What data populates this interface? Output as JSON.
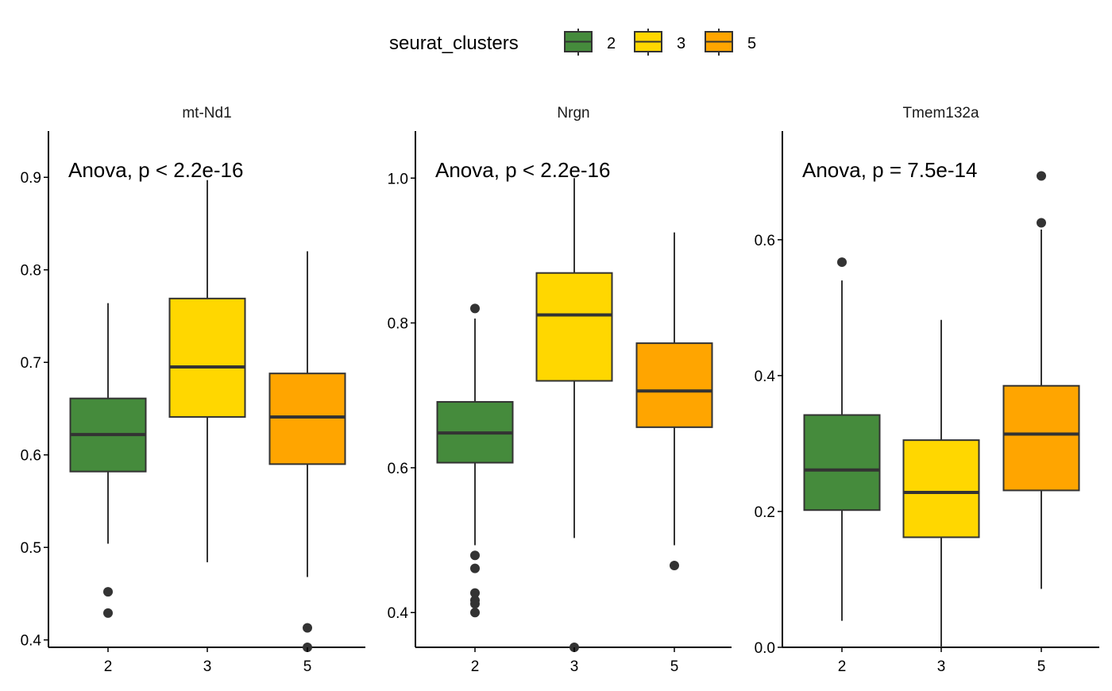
{
  "legend": {
    "title": "seurat_clusters",
    "items": [
      {
        "label": "2",
        "color": "#458B3C"
      },
      {
        "label": "3",
        "color": "#FFD700"
      },
      {
        "label": "5",
        "color": "#FFA500"
      }
    ]
  },
  "colors": {
    "outline": "#333333",
    "axis": "#000000",
    "background": "#ffffff"
  },
  "chart_data": [
    {
      "type": "box",
      "title": "mt-Nd1",
      "annotation": "Anova, p < 2.2e-16",
      "categories": [
        "2",
        "3",
        "5"
      ],
      "ylim": [
        0.392,
        0.95
      ],
      "yticks": [
        0.4,
        0.5,
        0.6,
        0.7,
        0.8,
        0.9
      ],
      "ytick_labels": [
        "0.4",
        "0.5",
        "0.6",
        "0.7",
        "0.8",
        "0.9"
      ],
      "boxes": [
        {
          "group": "2",
          "whisker_low": 0.504,
          "q1": 0.582,
          "median": 0.622,
          "q3": 0.661,
          "whisker_high": 0.764,
          "outliers": [
            0.452,
            0.429
          ]
        },
        {
          "group": "3",
          "whisker_low": 0.484,
          "q1": 0.641,
          "median": 0.695,
          "q3": 0.769,
          "whisker_high": 0.897,
          "outliers": []
        },
        {
          "group": "5",
          "whisker_low": 0.468,
          "q1": 0.59,
          "median": 0.641,
          "q3": 0.688,
          "whisker_high": 0.82,
          "outliers": [
            0.413,
            0.392
          ]
        }
      ]
    },
    {
      "type": "box",
      "title": "Nrgn",
      "annotation": "Anova, p < 2.2e-16",
      "categories": [
        "2",
        "3",
        "5"
      ],
      "ylim": [
        0.352,
        1.065
      ],
      "yticks": [
        0.4,
        0.6,
        0.8,
        1.0
      ],
      "ytick_labels": [
        "0.4",
        "0.6",
        "0.8",
        "1.0"
      ],
      "boxes": [
        {
          "group": "2",
          "whisker_low": 0.493,
          "q1": 0.607,
          "median": 0.648,
          "q3": 0.691,
          "whisker_high": 0.806,
          "outliers": [
            0.82,
            0.479,
            0.461,
            0.427,
            0.417,
            0.412,
            0.4
          ]
        },
        {
          "group": "3",
          "whisker_low": 0.503,
          "q1": 0.72,
          "median": 0.811,
          "q3": 0.869,
          "whisker_high": 1.0,
          "outliers": [
            0.352
          ]
        },
        {
          "group": "5",
          "whisker_low": 0.493,
          "q1": 0.656,
          "median": 0.706,
          "q3": 0.772,
          "whisker_high": 0.925,
          "outliers": [
            0.465
          ]
        }
      ]
    },
    {
      "type": "box",
      "title": "Tmem132a",
      "annotation": "Anova, p = 7.5e-14",
      "categories": [
        "2",
        "3",
        "5"
      ],
      "ylim": [
        0.0,
        0.76
      ],
      "yticks": [
        0.0,
        0.2,
        0.4,
        0.6
      ],
      "ytick_labels": [
        "0.0",
        "0.2",
        "0.4",
        "0.6"
      ],
      "boxes": [
        {
          "group": "2",
          "whisker_low": 0.039,
          "q1": 0.202,
          "median": 0.261,
          "q3": 0.342,
          "whisker_high": 0.54,
          "outliers": [
            0.567
          ]
        },
        {
          "group": "3",
          "whisker_low": 0.0,
          "q1": 0.162,
          "median": 0.228,
          "q3": 0.305,
          "whisker_high": 0.482,
          "outliers": []
        },
        {
          "group": "5",
          "whisker_low": 0.086,
          "q1": 0.231,
          "median": 0.314,
          "q3": 0.385,
          "whisker_high": 0.615,
          "outliers": [
            0.694,
            0.625
          ]
        }
      ]
    }
  ]
}
